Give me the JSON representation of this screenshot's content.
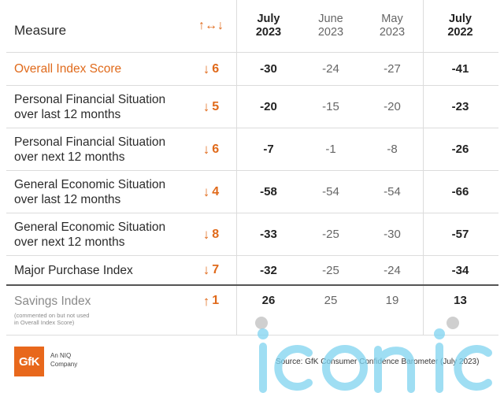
{
  "header": {
    "measure_label": "Measure",
    "change_symbol": "↑↔↓",
    "columns": [
      {
        "month": "July",
        "year": "2023"
      },
      {
        "month": "June",
        "year": "2023"
      },
      {
        "month": "May",
        "year": "2023"
      },
      {
        "month": "July",
        "year": "2022"
      }
    ]
  },
  "rows": [
    {
      "label_1": "Overall Index Score",
      "label_2": "",
      "arrow": "↓",
      "change": "6",
      "jul23": "-30",
      "jun23": "-24",
      "may23": "-27",
      "jul22": "-41"
    },
    {
      "label_1": "Personal Financial Situation",
      "label_2": "over last 12 months",
      "arrow": "↓",
      "change": "5",
      "jul23": "-20",
      "jun23": "-15",
      "may23": "-20",
      "jul22": "-23"
    },
    {
      "label_1": "Personal Financial Situation",
      "label_2": "over next 12 months",
      "arrow": "↓",
      "change": "6",
      "jul23": "-7",
      "jun23": "-1",
      "may23": "-8",
      "jul22": "-26"
    },
    {
      "label_1": "General Economic Situation",
      "label_2": "over last 12 months",
      "arrow": "↓",
      "change": "4",
      "jul23": "-58",
      "jun23": "-54",
      "may23": "-54",
      "jul22": "-66"
    },
    {
      "label_1": "General Economic Situation",
      "label_2": "over next 12 months",
      "arrow": "↓",
      "change": "8",
      "jul23": "-33",
      "jun23": "-25",
      "may23": "-30",
      "jul22": "-57"
    },
    {
      "label_1": "Major Purchase Index",
      "label_2": "",
      "arrow": "↓",
      "change": "7",
      "jul23": "-32",
      "jun23": "-25",
      "may23": "-24",
      "jul22": "-34"
    }
  ],
  "savings": {
    "label": "Savings Index",
    "note_1": "(commented on but not used",
    "note_2": "in Overall Index Score)",
    "arrow": "↑",
    "change": "1",
    "jul23": "26",
    "jun23": "25",
    "may23": "19",
    "jul22": "13"
  },
  "footer": {
    "logo_text": "GfK",
    "company_line_1": "An NIQ",
    "company_line_2": "Company",
    "source": "Source: GfK Consumer Confidence Barometer (July 2023)"
  },
  "watermark_text": "iconic",
  "colors": {
    "accent": "#e06a1b",
    "watermark": "#7fd3f0"
  }
}
